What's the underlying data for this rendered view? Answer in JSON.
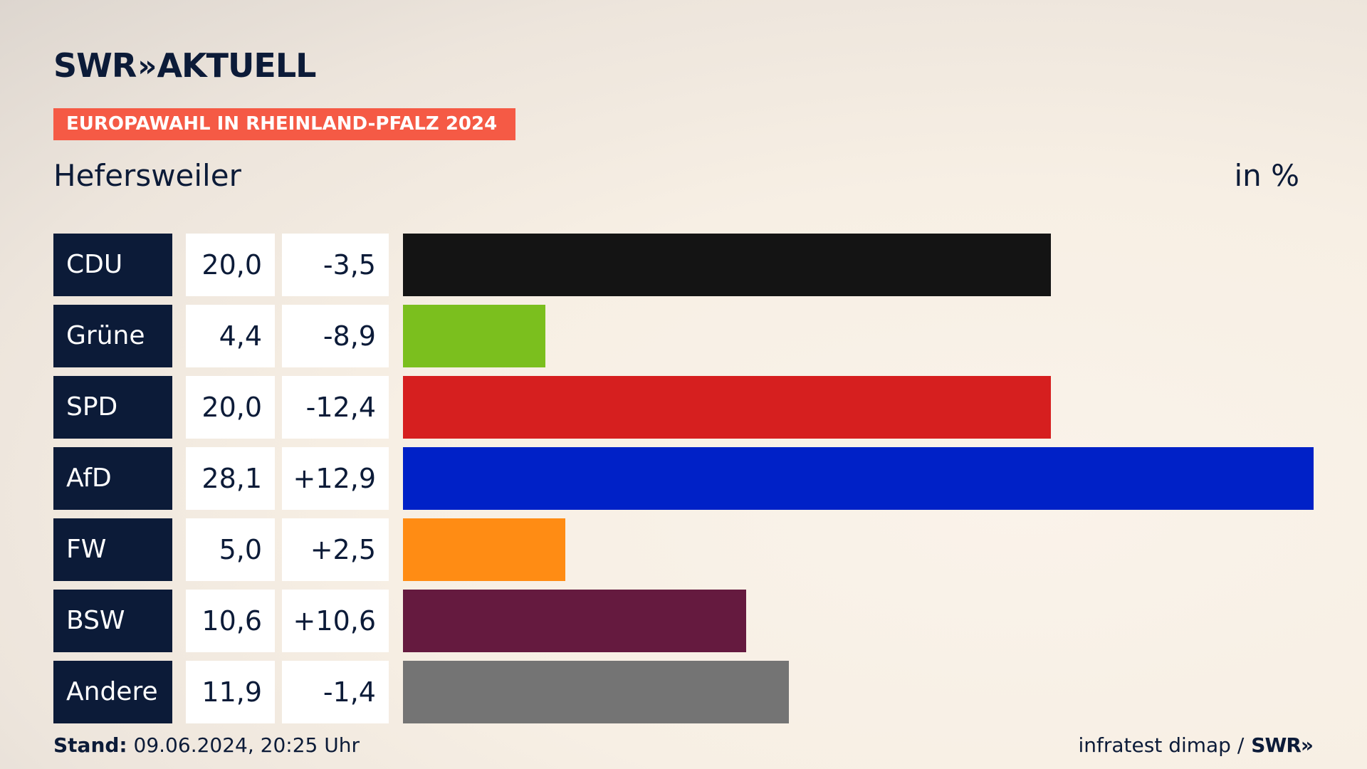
{
  "header": {
    "logo_text": "SWR",
    "logo_chevron": "»",
    "logo_suffix": "AKTUELL",
    "banner": "EUROPAWAHL IN RHEINLAND-PFALZ 2024",
    "place": "Hefersweiler",
    "unit": "in %"
  },
  "colors": {
    "navy": "#0c1b38",
    "banner": "#f55a45"
  },
  "chart_data": {
    "type": "bar",
    "orientation": "horizontal",
    "categories": [
      "CDU",
      "Grüne",
      "SPD",
      "AfD",
      "FW",
      "BSW",
      "Andere"
    ],
    "values": [
      20.0,
      4.4,
      20.0,
      28.1,
      5.0,
      10.6,
      11.9
    ],
    "value_labels": [
      "20,0",
      "4,4",
      "20,0",
      "28,1",
      "5,0",
      "10,6",
      "11,9"
    ],
    "diff_labels": [
      "-3,5",
      "-8,9",
      "-12,4",
      "+12,9",
      "+2,5",
      "+10,6",
      "-1,4"
    ],
    "bar_colors": [
      "#141414",
      "#7bbf1e",
      "#d61f1f",
      "#0021c7",
      "#ff8c14",
      "#651a3f",
      "#747474"
    ],
    "grid": false,
    "legend": "none"
  },
  "footer": {
    "stand_label": "Stand:",
    "stand_value": "09.06.2024, 20:25 Uhr",
    "source": "infratest dimap /",
    "source_logo": "SWR»"
  }
}
